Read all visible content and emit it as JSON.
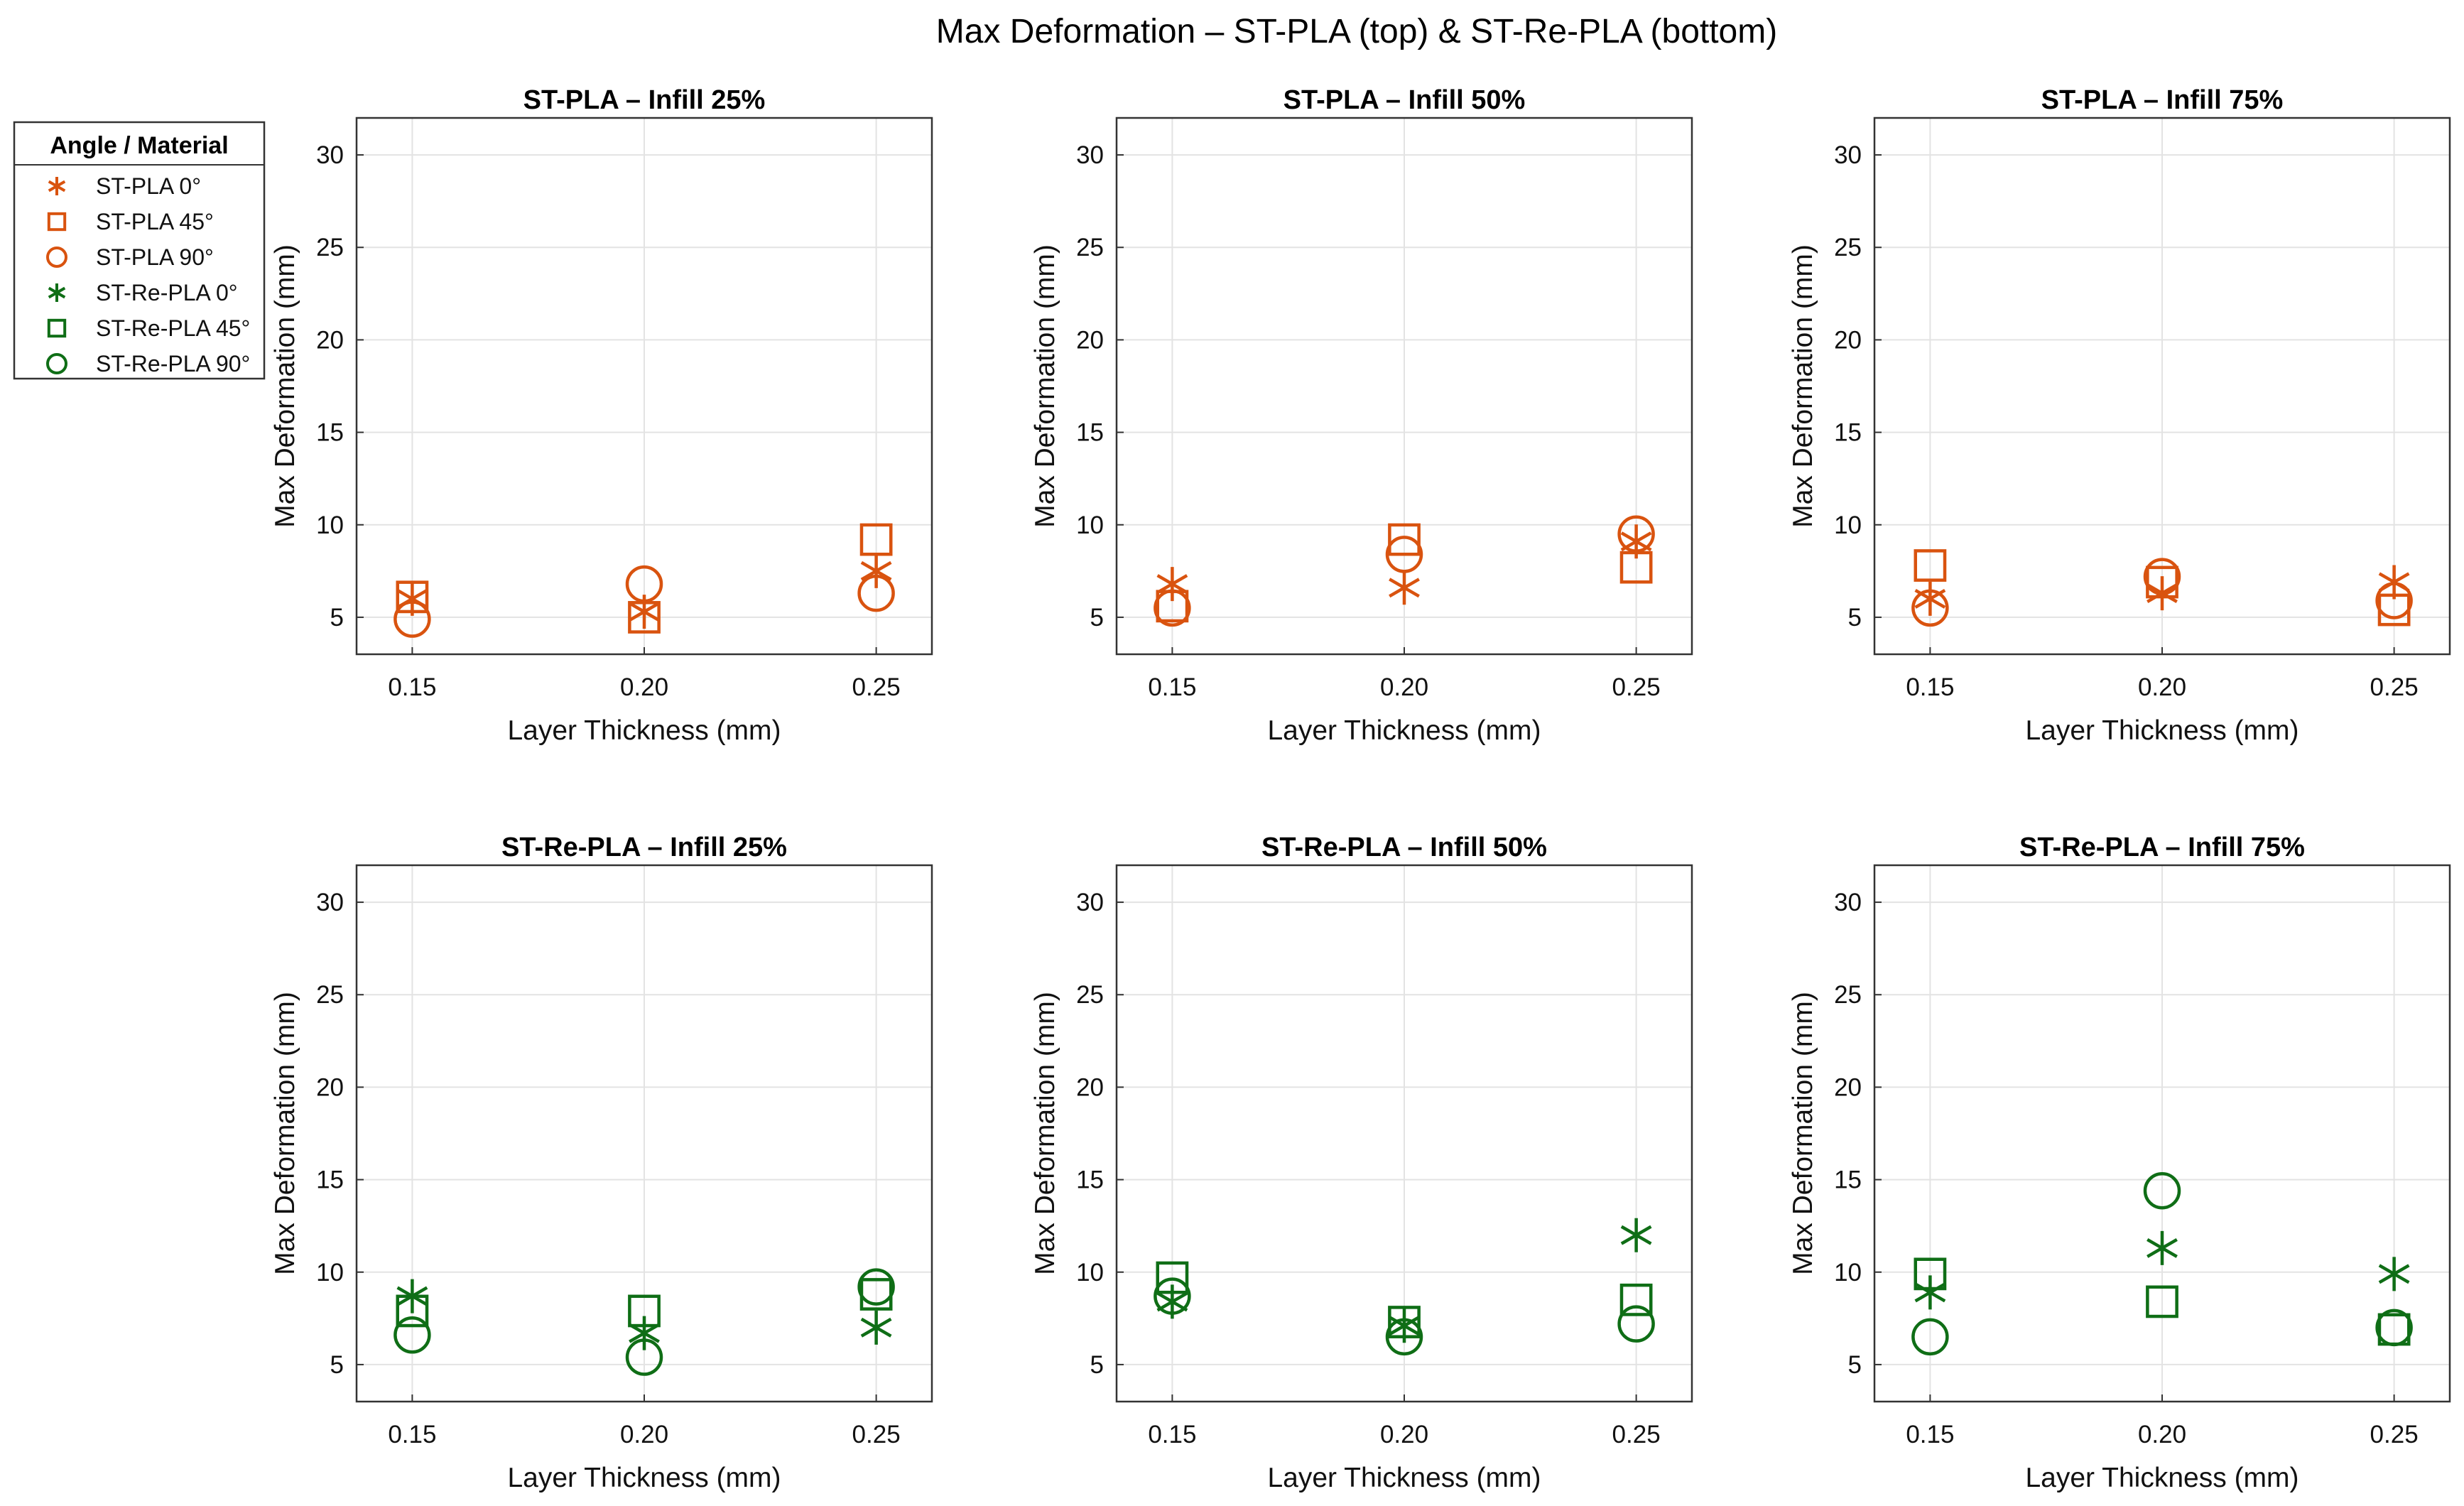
{
  "chart_data": {
    "type": "scatter",
    "title": "Max Deformation – ST-PLA (top) & ST-Re-PLA (bottom)",
    "colors": {
      "ST-PLA": "#d9530f",
      "ST-Re-PLA": "#0f6e16"
    },
    "legend": {
      "title": "Angle / Material",
      "placement": "outside-left-top",
      "entries": [
        {
          "label": "ST-PLA 0°",
          "marker": "asterisk",
          "material": "ST-PLA"
        },
        {
          "label": "ST-PLA 45°",
          "marker": "square",
          "material": "ST-PLA"
        },
        {
          "label": "ST-PLA 90°",
          "marker": "circle",
          "material": "ST-PLA"
        },
        {
          "label": "ST-Re-PLA 0°",
          "marker": "asterisk",
          "material": "ST-Re-PLA"
        },
        {
          "label": "ST-Re-PLA 45°",
          "marker": "square",
          "material": "ST-Re-PLA"
        },
        {
          "label": "ST-Re-PLA 90°",
          "marker": "circle",
          "material": "ST-Re-PLA"
        }
      ]
    },
    "xlabel": "Layer Thickness (mm)",
    "ylabel": "Max Deformation (mm)",
    "xticks": [
      0.15,
      0.2,
      0.25
    ],
    "xticklabels": [
      "0.15",
      "0.20",
      "0.25"
    ],
    "xlim": [
      0.138,
      0.262
    ],
    "ylim": [
      3,
      32
    ],
    "yticks": [
      5,
      10,
      15,
      20,
      25,
      30
    ],
    "grid": true,
    "panels": [
      {
        "title": "ST-PLA – Infill 25%",
        "material": "ST-PLA",
        "series": [
          {
            "name": "ST-PLA 0°",
            "marker": "asterisk",
            "x": [
              0.15,
              0.2,
              0.25
            ],
            "y": [
              6.0,
              5.3,
              7.5
            ]
          },
          {
            "name": "ST-PLA 45°",
            "marker": "square",
            "x": [
              0.15,
              0.2,
              0.25
            ],
            "y": [
              6.1,
              5.0,
              9.2
            ]
          },
          {
            "name": "ST-PLA 90°",
            "marker": "circle",
            "x": [
              0.15,
              0.2,
              0.25
            ],
            "y": [
              4.9,
              6.8,
              6.3
            ]
          }
        ]
      },
      {
        "title": "ST-PLA – Infill 50%",
        "material": "ST-PLA",
        "series": [
          {
            "name": "ST-PLA 0°",
            "marker": "asterisk",
            "x": [
              0.15,
              0.2,
              0.25
            ],
            "y": [
              6.8,
              6.6,
              9.1
            ]
          },
          {
            "name": "ST-PLA 45°",
            "marker": "square",
            "x": [
              0.15,
              0.2,
              0.25
            ],
            "y": [
              5.6,
              9.2,
              7.7
            ]
          },
          {
            "name": "ST-PLA 90°",
            "marker": "circle",
            "x": [
              0.15,
              0.2,
              0.25
            ],
            "y": [
              5.5,
              8.4,
              9.5
            ]
          }
        ]
      },
      {
        "title": "ST-PLA – Infill 75%",
        "material": "ST-PLA",
        "series": [
          {
            "name": "ST-PLA 0°",
            "marker": "asterisk",
            "x": [
              0.15,
              0.2,
              0.25
            ],
            "y": [
              6.0,
              6.3,
              6.9
            ]
          },
          {
            "name": "ST-PLA 45°",
            "marker": "square",
            "x": [
              0.15,
              0.2,
              0.25
            ],
            "y": [
              7.8,
              6.9,
              5.4
            ]
          },
          {
            "name": "ST-PLA 90°",
            "marker": "circle",
            "x": [
              0.15,
              0.2,
              0.25
            ],
            "y": [
              5.5,
              7.2,
              5.9
            ]
          }
        ]
      },
      {
        "title": "ST-Re-PLA – Infill 25%",
        "material": "ST-Re-PLA",
        "series": [
          {
            "name": "ST-Re-PLA 0°",
            "marker": "asterisk",
            "x": [
              0.15,
              0.2,
              0.25
            ],
            "y": [
              8.7,
              6.7,
              7.0
            ]
          },
          {
            "name": "ST-Re-PLA 45°",
            "marker": "square",
            "x": [
              0.15,
              0.2,
              0.25
            ],
            "y": [
              7.9,
              7.9,
              8.8
            ]
          },
          {
            "name": "ST-Re-PLA 90°",
            "marker": "circle",
            "x": [
              0.15,
              0.2,
              0.25
            ],
            "y": [
              6.6,
              5.4,
              9.2
            ]
          }
        ]
      },
      {
        "title": "ST-Re-PLA – Infill 50%",
        "material": "ST-Re-PLA",
        "series": [
          {
            "name": "ST-Re-PLA 0°",
            "marker": "asterisk",
            "x": [
              0.15,
              0.2,
              0.25
            ],
            "y": [
              8.4,
              7.1,
              12.0
            ]
          },
          {
            "name": "ST-Re-PLA 45°",
            "marker": "square",
            "x": [
              0.15,
              0.2,
              0.25
            ],
            "y": [
              9.7,
              7.3,
              8.5
            ]
          },
          {
            "name": "ST-Re-PLA 90°",
            "marker": "circle",
            "x": [
              0.15,
              0.2,
              0.25
            ],
            "y": [
              8.7,
              6.5,
              7.2
            ]
          }
        ]
      },
      {
        "title": "ST-Re-PLA – Infill 75%",
        "material": "ST-Re-PLA",
        "series": [
          {
            "name": "ST-Re-PLA 0°",
            "marker": "asterisk",
            "x": [
              0.15,
              0.2,
              0.25
            ],
            "y": [
              8.9,
              11.3,
              9.9
            ]
          },
          {
            "name": "ST-Re-PLA 45°",
            "marker": "square",
            "x": [
              0.15,
              0.2,
              0.25
            ],
            "y": [
              9.9,
              8.4,
              6.9
            ]
          },
          {
            "name": "ST-Re-PLA 90°",
            "marker": "circle",
            "x": [
              0.15,
              0.2,
              0.25
            ],
            "y": [
              6.5,
              14.4,
              7.0
            ]
          }
        ]
      }
    ]
  }
}
